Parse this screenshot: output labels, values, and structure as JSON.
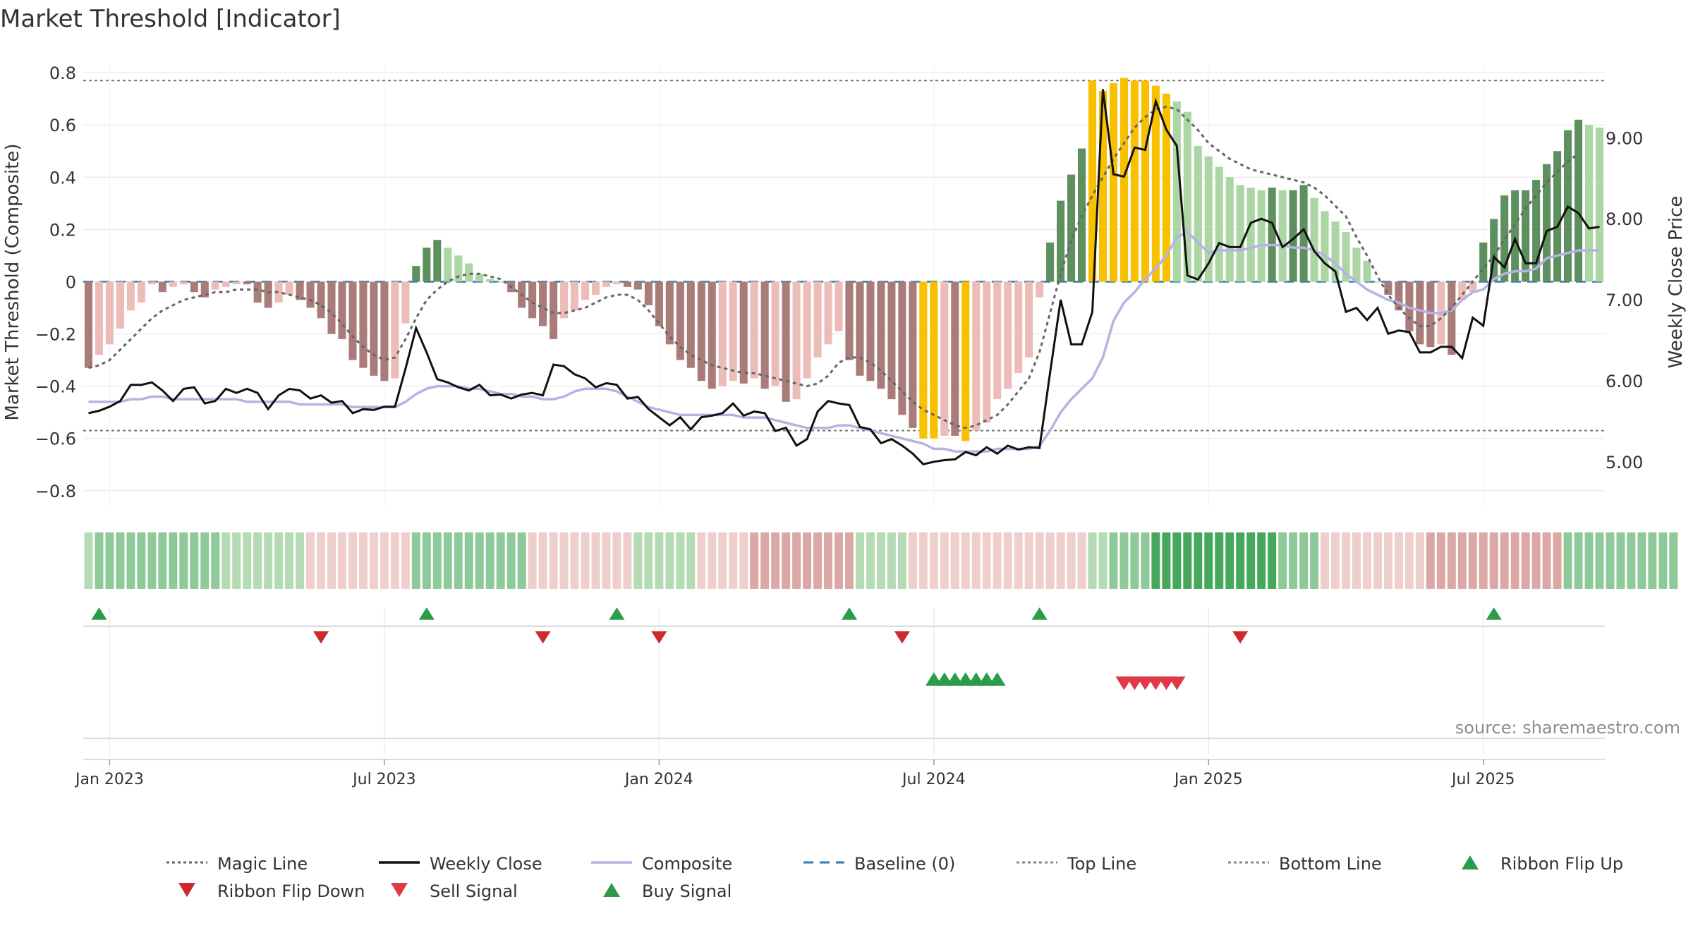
{
  "chart_data": {
    "type": "bar",
    "title": "Market Threshold [Indicator]",
    "ylabel": "Market Threshold (Composite)",
    "y2label": "Weekly Close Price",
    "source": "source: sharemaestro.com",
    "ylim": [
      -0.86,
      0.83
    ],
    "y2lim": [
      4.45,
      9.9
    ],
    "yticks": [
      -0.8,
      -0.6,
      -0.4,
      -0.2,
      0,
      0.2,
      0.4,
      0.6,
      0.8
    ],
    "yticklabels": [
      "−0.8",
      "−0.6",
      "−0.4",
      "−0.2",
      "0",
      "0.2",
      "0.4",
      "0.6",
      "0.8"
    ],
    "y2ticks": [
      5,
      6,
      7,
      8,
      9
    ],
    "y2ticklabels": [
      "5.00",
      "6.00",
      "7.00",
      "8.00",
      "9.00"
    ],
    "xticklabels": [
      "Jan 2023",
      "Jul 2023",
      "Jan 2024",
      "Jul 2024",
      "Jan 2025",
      "Jul 2025"
    ],
    "xticks_week": [
      2,
      28,
      54,
      80,
      106,
      132
    ],
    "grid": true,
    "top_line": 0.77,
    "bottom_line": -0.57,
    "baseline": 0,
    "colors": {
      "pos_dark": "#5e8f5e",
      "pos_light": "#acd6a4",
      "neg_dark": "#a97c7a",
      "neg_light": "#ecbdb8",
      "extreme": "#f9c000",
      "magic": "#666666",
      "close": "#111111",
      "composite": "#b6b2e4",
      "baseline": "#2a7bb0",
      "threshold": "#777777",
      "up_marker": "#2c9c4a",
      "down_marker": "#cc2b2b",
      "sell_marker": "#e03a48",
      "ribbon_green": "#46a85c",
      "ribbon_red": "#d08a86"
    },
    "bars": [
      -0.33,
      -0.28,
      -0.24,
      -0.18,
      -0.11,
      -0.08,
      -0.01,
      -0.04,
      -0.02,
      -0.01,
      -0.04,
      -0.06,
      -0.03,
      -0.02,
      -0.01,
      -0.01,
      -0.08,
      -0.1,
      -0.08,
      -0.05,
      -0.07,
      -0.1,
      -0.14,
      -0.2,
      -0.22,
      -0.3,
      -0.33,
      -0.36,
      -0.38,
      -0.37,
      -0.16,
      0.06,
      0.13,
      0.16,
      0.13,
      0.1,
      0.07,
      0.03,
      0.01,
      0.0,
      -0.04,
      -0.1,
      -0.14,
      -0.17,
      -0.22,
      -0.14,
      -0.11,
      -0.07,
      -0.05,
      -0.02,
      -0.01,
      -0.02,
      -0.03,
      -0.09,
      -0.17,
      -0.24,
      -0.3,
      -0.33,
      -0.38,
      -0.41,
      -0.4,
      -0.38,
      -0.39,
      -0.37,
      -0.41,
      -0.4,
      -0.46,
      -0.45,
      -0.37,
      -0.29,
      -0.24,
      -0.19,
      -0.3,
      -0.36,
      -0.38,
      -0.41,
      -0.45,
      -0.51,
      -0.56,
      -0.6,
      -0.6,
      -0.59,
      -0.59,
      -0.61,
      -0.57,
      -0.54,
      -0.45,
      -0.41,
      -0.35,
      -0.29,
      -0.06,
      0.15,
      0.31,
      0.41,
      0.51,
      0.77,
      0.73,
      0.76,
      0.78,
      0.77,
      0.77,
      0.75,
      0.72,
      0.69,
      0.65,
      0.52,
      0.48,
      0.44,
      0.4,
      0.37,
      0.36,
      0.35,
      0.36,
      0.35,
      0.35,
      0.37,
      0.32,
      0.27,
      0.23,
      0.19,
      0.13,
      0.08,
      0.0,
      -0.05,
      -0.11,
      -0.19,
      -0.24,
      -0.25,
      -0.24,
      -0.28,
      -0.07,
      -0.04,
      0.15,
      0.24,
      0.33,
      0.35,
      0.35,
      0.39,
      0.45,
      0.5,
      0.58,
      0.62,
      0.6,
      0.59
    ],
    "close": [
      5.6,
      5.63,
      5.68,
      5.75,
      5.95,
      5.95,
      5.98,
      5.88,
      5.75,
      5.9,
      5.92,
      5.72,
      5.75,
      5.9,
      5.85,
      5.9,
      5.85,
      5.65,
      5.82,
      5.9,
      5.88,
      5.78,
      5.82,
      5.73,
      5.75,
      5.6,
      5.65,
      5.64,
      5.68,
      5.68,
      6.15,
      6.65,
      6.35,
      6.02,
      5.98,
      5.92,
      5.88,
      5.95,
      5.82,
      5.83,
      5.78,
      5.83,
      5.85,
      5.82,
      6.2,
      6.18,
      6.08,
      6.03,
      5.92,
      5.97,
      5.95,
      5.78,
      5.8,
      5.65,
      5.55,
      5.45,
      5.55,
      5.4,
      5.55,
      5.57,
      5.6,
      5.72,
      5.57,
      5.62,
      5.6,
      5.38,
      5.42,
      5.2,
      5.28,
      5.62,
      5.75,
      5.72,
      5.7,
      5.43,
      5.4,
      5.23,
      5.28,
      5.2,
      5.1,
      4.97,
      5.0,
      5.02,
      5.03,
      5.12,
      5.08,
      5.18,
      5.1,
      5.2,
      5.15,
      5.18,
      5.17,
      6.1,
      7.0,
      6.45,
      6.45,
      6.85,
      9.6,
      8.55,
      8.52,
      8.88,
      8.85,
      9.45,
      9.1,
      8.9,
      7.3,
      7.25,
      7.45,
      7.7,
      7.65,
      7.65,
      7.95,
      8.0,
      7.95,
      7.65,
      7.75,
      7.87,
      7.6,
      7.45,
      7.35,
      6.85,
      6.9,
      6.75,
      6.9,
      6.58,
      6.62,
      6.6,
      6.35,
      6.35,
      6.42,
      6.42,
      6.28,
      6.78,
      6.68,
      7.53,
      7.4,
      7.75,
      7.45,
      7.45,
      7.85,
      7.9,
      8.15,
      8.07,
      7.88,
      7.9
    ],
    "composite": [
      -0.46,
      -0.46,
      -0.46,
      -0.46,
      -0.45,
      -0.45,
      -0.44,
      -0.44,
      -0.45,
      -0.45,
      -0.45,
      -0.45,
      -0.45,
      -0.45,
      -0.45,
      -0.46,
      -0.46,
      -0.46,
      -0.46,
      -0.46,
      -0.47,
      -0.47,
      -0.47,
      -0.47,
      -0.47,
      -0.48,
      -0.48,
      -0.48,
      -0.48,
      -0.48,
      -0.46,
      -0.43,
      -0.41,
      -0.4,
      -0.4,
      -0.4,
      -0.41,
      -0.41,
      -0.42,
      -0.43,
      -0.43,
      -0.44,
      -0.44,
      -0.45,
      -0.45,
      -0.44,
      -0.42,
      -0.41,
      -0.41,
      -0.41,
      -0.42,
      -0.44,
      -0.46,
      -0.48,
      -0.49,
      -0.5,
      -0.51,
      -0.51,
      -0.51,
      -0.51,
      -0.51,
      -0.51,
      -0.52,
      -0.52,
      -0.52,
      -0.53,
      -0.54,
      -0.55,
      -0.56,
      -0.56,
      -0.56,
      -0.55,
      -0.55,
      -0.56,
      -0.57,
      -0.58,
      -0.59,
      -0.6,
      -0.61,
      -0.62,
      -0.64,
      -0.64,
      -0.65,
      -0.65,
      -0.65,
      -0.65,
      -0.64,
      -0.64,
      -0.64,
      -0.64,
      -0.63,
      -0.57,
      -0.5,
      -0.45,
      -0.41,
      -0.37,
      -0.29,
      -0.15,
      -0.08,
      -0.04,
      0.01,
      0.05,
      0.1,
      0.17,
      0.19,
      0.15,
      0.11,
      0.12,
      0.12,
      0.12,
      0.13,
      0.14,
      0.14,
      0.14,
      0.13,
      0.13,
      0.12,
      0.1,
      0.07,
      0.03,
      0.0,
      -0.03,
      -0.05,
      -0.07,
      -0.08,
      -0.1,
      -0.11,
      -0.12,
      -0.12,
      -0.11,
      -0.07,
      -0.04,
      -0.03,
      0.01,
      0.03,
      0.04,
      0.04,
      0.05,
      0.09,
      0.1,
      0.11,
      0.12,
      0.12,
      0.12
    ],
    "magic": [
      -0.33,
      -0.32,
      -0.3,
      -0.26,
      -0.22,
      -0.18,
      -0.14,
      -0.11,
      -0.09,
      -0.07,
      -0.06,
      -0.05,
      -0.04,
      -0.04,
      -0.03,
      -0.03,
      -0.03,
      -0.04,
      -0.04,
      -0.05,
      -0.06,
      -0.07,
      -0.09,
      -0.12,
      -0.16,
      -0.21,
      -0.25,
      -0.28,
      -0.3,
      -0.29,
      -0.22,
      -0.14,
      -0.07,
      -0.03,
      0.0,
      0.02,
      0.03,
      0.03,
      0.02,
      0.01,
      -0.02,
      -0.05,
      -0.08,
      -0.1,
      -0.12,
      -0.12,
      -0.11,
      -0.1,
      -0.08,
      -0.06,
      -0.05,
      -0.05,
      -0.07,
      -0.11,
      -0.16,
      -0.21,
      -0.25,
      -0.28,
      -0.3,
      -0.32,
      -0.33,
      -0.34,
      -0.35,
      -0.35,
      -0.36,
      -0.37,
      -0.38,
      -0.39,
      -0.4,
      -0.39,
      -0.36,
      -0.31,
      -0.29,
      -0.29,
      -0.31,
      -0.34,
      -0.38,
      -0.42,
      -0.46,
      -0.49,
      -0.51,
      -0.53,
      -0.55,
      -0.56,
      -0.55,
      -0.53,
      -0.51,
      -0.47,
      -0.42,
      -0.37,
      -0.27,
      -0.12,
      0.03,
      0.16,
      0.25,
      0.33,
      0.4,
      0.47,
      0.53,
      0.59,
      0.63,
      0.66,
      0.67,
      0.66,
      0.62,
      0.58,
      0.53,
      0.5,
      0.47,
      0.45,
      0.43,
      0.42,
      0.41,
      0.4,
      0.39,
      0.38,
      0.36,
      0.33,
      0.29,
      0.25,
      0.17,
      0.1,
      0.02,
      -0.05,
      -0.1,
      -0.14,
      -0.17,
      -0.17,
      -0.14,
      -0.1,
      -0.05,
      0.0,
      0.05,
      0.1,
      0.16,
      0.22,
      0.28,
      0.33,
      0.38,
      0.42,
      0.46,
      0.49
    ],
    "ribbon": [
      1,
      2,
      2,
      2,
      2,
      2,
      2,
      2,
      2,
      2,
      2,
      2,
      2,
      1,
      1,
      1,
      1,
      1,
      1,
      1,
      1,
      -1,
      -1,
      -1,
      -1,
      -1,
      -1,
      -1,
      -1,
      -1,
      -1,
      2,
      2,
      2,
      2,
      2,
      2,
      2,
      2,
      2,
      2,
      2,
      -1,
      -1,
      -1,
      -1,
      -1,
      -1,
      -1,
      -1,
      -1,
      -1,
      1,
      1,
      1,
      1,
      1,
      1,
      -1,
      -1,
      -1,
      -1,
      -1,
      -2,
      -2,
      -2,
      -2,
      -2,
      -2,
      -2,
      -2,
      -2,
      -2,
      1,
      1,
      1,
      1,
      1,
      -1,
      -1,
      -1,
      -1,
      -1,
      -1,
      -1,
      -1,
      -1,
      -1,
      -1,
      -1,
      -1,
      -1,
      -1,
      -1,
      -1,
      1,
      1,
      2,
      2,
      2,
      2,
      3,
      3,
      3,
      3,
      3,
      3,
      3,
      3,
      3,
      3,
      3,
      3,
      2,
      2,
      2,
      2,
      -1,
      -1,
      -1,
      -1,
      -1,
      -1,
      -1,
      -1,
      -1,
      -1,
      -2,
      -2,
      -2,
      -2,
      -2,
      -2,
      -2,
      -2,
      -2,
      -2,
      -2,
      -2,
      -2,
      2,
      2,
      2,
      2,
      2,
      2,
      2,
      2,
      2,
      2,
      2
    ],
    "ribbon_flip_up": [
      1,
      32,
      50,
      72,
      90,
      133
    ],
    "ribbon_flip_down": [
      22,
      43,
      54,
      77,
      109
    ],
    "buy_signal": [
      80,
      81,
      82,
      83,
      84,
      85,
      86
    ],
    "sell_signal": [
      98,
      99,
      100,
      101,
      102,
      103
    ]
  },
  "legend": [
    {
      "label": "Magic Line",
      "icon": "dotted-line",
      "color": "#666666"
    },
    {
      "label": "Weekly Close",
      "icon": "solid-line",
      "color": "#111111"
    },
    {
      "label": "Composite",
      "icon": "solid-line",
      "color": "#b6b2e4"
    },
    {
      "label": "Baseline (0)",
      "icon": "dashed-line",
      "color": "#2a7bb0"
    },
    {
      "label": "Top Line",
      "icon": "dotted-line",
      "color": "#888888"
    },
    {
      "label": "Bottom Line",
      "icon": "dotted-line",
      "color": "#888888"
    },
    {
      "label": "Ribbon Flip Up",
      "icon": "triangle-up",
      "color": "#2c9c4a"
    },
    {
      "label": "Ribbon Flip Down",
      "icon": "triangle-down",
      "color": "#cc2b2b"
    },
    {
      "label": "Sell Signal",
      "icon": "triangle-down",
      "color": "#e03a48"
    },
    {
      "label": "Buy Signal",
      "icon": "triangle-up",
      "color": "#2c9c4a"
    }
  ]
}
